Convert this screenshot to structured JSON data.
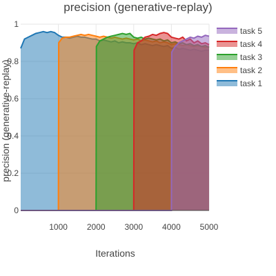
{
  "chart_data": {
    "type": "area",
    "title": "precision (generative-replay)",
    "xlabel": "Iterations",
    "ylabel": "precision (generative-replay)",
    "xlim": [
      0,
      5000
    ],
    "ylim": [
      0,
      1
    ],
    "x_ticks": [
      1000,
      2000,
      3000,
      4000,
      5000
    ],
    "y_ticks": [
      0,
      0.2,
      0.4,
      0.6,
      0.8,
      1
    ],
    "x_tick_labels": [
      "1000",
      "2000",
      "3000",
      "4000",
      "5000"
    ],
    "y_tick_labels": [
      "0",
      "0.2",
      "0.4",
      "0.6",
      "0.8",
      "1"
    ],
    "grid": true,
    "legend_position": "top-right",
    "series": [
      {
        "name": "task 1",
        "color": "#1f77b4",
        "points": [
          [
            0,
            0.87
          ],
          [
            100,
            0.92
          ],
          [
            200,
            0.93
          ],
          [
            300,
            0.94
          ],
          [
            400,
            0.95
          ],
          [
            500,
            0.955
          ],
          [
            600,
            0.96
          ],
          [
            700,
            0.955
          ],
          [
            800,
            0.96
          ],
          [
            900,
            0.955
          ],
          [
            1000,
            0.94
          ],
          [
            1100,
            0.93
          ],
          [
            1200,
            0.93
          ],
          [
            1300,
            0.925
          ],
          [
            1400,
            0.93
          ],
          [
            1500,
            0.935
          ],
          [
            1600,
            0.93
          ],
          [
            1700,
            0.93
          ],
          [
            1800,
            0.925
          ],
          [
            1900,
            0.92
          ],
          [
            2000,
            0.92
          ],
          [
            2100,
            0.91
          ],
          [
            2200,
            0.915
          ],
          [
            2300,
            0.91
          ],
          [
            2400,
            0.905
          ],
          [
            2500,
            0.91
          ],
          [
            2600,
            0.9
          ],
          [
            2700,
            0.905
          ],
          [
            2800,
            0.9
          ],
          [
            2900,
            0.9
          ],
          [
            3000,
            0.895
          ],
          [
            3100,
            0.9
          ],
          [
            3200,
            0.89
          ],
          [
            3300,
            0.895
          ],
          [
            3400,
            0.89
          ],
          [
            3500,
            0.885
          ],
          [
            3600,
            0.89
          ],
          [
            3700,
            0.885
          ],
          [
            3800,
            0.88
          ],
          [
            3900,
            0.885
          ],
          [
            4000,
            0.87
          ],
          [
            4100,
            0.875
          ],
          [
            4200,
            0.865
          ],
          [
            4300,
            0.87
          ],
          [
            4400,
            0.865
          ],
          [
            4500,
            0.86
          ],
          [
            4600,
            0.865
          ],
          [
            4700,
            0.86
          ],
          [
            4800,
            0.855
          ],
          [
            4900,
            0.86
          ],
          [
            5000,
            0.86
          ]
        ]
      },
      {
        "name": "task 2",
        "color": "#ff7f0e",
        "points": [
          [
            1000,
            0
          ],
          [
            1010,
            0.9
          ],
          [
            1100,
            0.925
          ],
          [
            1200,
            0.93
          ],
          [
            1300,
            0.93
          ],
          [
            1400,
            0.935
          ],
          [
            1500,
            0.94
          ],
          [
            1600,
            0.945
          ],
          [
            1700,
            0.94
          ],
          [
            1800,
            0.945
          ],
          [
            1900,
            0.94
          ],
          [
            2000,
            0.935
          ],
          [
            2100,
            0.93
          ],
          [
            2200,
            0.935
          ],
          [
            2300,
            0.93
          ],
          [
            2400,
            0.925
          ],
          [
            2500,
            0.93
          ],
          [
            2600,
            0.925
          ],
          [
            2700,
            0.92
          ],
          [
            2800,
            0.925
          ],
          [
            2900,
            0.92
          ],
          [
            3000,
            0.915
          ],
          [
            3100,
            0.92
          ],
          [
            3200,
            0.91
          ],
          [
            3300,
            0.915
          ],
          [
            3400,
            0.91
          ],
          [
            3500,
            0.905
          ],
          [
            3600,
            0.91
          ],
          [
            3700,
            0.9
          ],
          [
            3800,
            0.905
          ],
          [
            3900,
            0.9
          ],
          [
            4000,
            0.89
          ],
          [
            4100,
            0.895
          ],
          [
            4200,
            0.89
          ],
          [
            4300,
            0.885
          ],
          [
            4400,
            0.89
          ],
          [
            4500,
            0.885
          ],
          [
            4600,
            0.88
          ],
          [
            4700,
            0.885
          ],
          [
            4800,
            0.88
          ],
          [
            4900,
            0.875
          ],
          [
            5000,
            0.88
          ]
        ]
      },
      {
        "name": "task 3",
        "color": "#2ca02c",
        "points": [
          [
            2000,
            0
          ],
          [
            2010,
            0.88
          ],
          [
            2100,
            0.91
          ],
          [
            2200,
            0.92
          ],
          [
            2300,
            0.93
          ],
          [
            2400,
            0.935
          ],
          [
            2500,
            0.94
          ],
          [
            2600,
            0.945
          ],
          [
            2700,
            0.95
          ],
          [
            2800,
            0.945
          ],
          [
            2900,
            0.95
          ],
          [
            3000,
            0.93
          ],
          [
            3100,
            0.925
          ],
          [
            3200,
            0.93
          ],
          [
            3300,
            0.92
          ],
          [
            3400,
            0.925
          ],
          [
            3500,
            0.92
          ],
          [
            3600,
            0.915
          ],
          [
            3700,
            0.92
          ],
          [
            3800,
            0.91
          ],
          [
            3900,
            0.915
          ],
          [
            4000,
            0.9
          ],
          [
            4100,
            0.905
          ],
          [
            4200,
            0.895
          ],
          [
            4300,
            0.9
          ],
          [
            4400,
            0.89
          ],
          [
            4500,
            0.895
          ],
          [
            4600,
            0.885
          ],
          [
            4700,
            0.89
          ],
          [
            4800,
            0.88
          ],
          [
            4900,
            0.885
          ],
          [
            5000,
            0.875
          ]
        ]
      },
      {
        "name": "task 4",
        "color": "#d62728",
        "points": [
          [
            3000,
            0
          ],
          [
            3010,
            0.86
          ],
          [
            3100,
            0.9
          ],
          [
            3200,
            0.91
          ],
          [
            3300,
            0.93
          ],
          [
            3400,
            0.935
          ],
          [
            3500,
            0.945
          ],
          [
            3600,
            0.94
          ],
          [
            3700,
            0.95
          ],
          [
            3800,
            0.955
          ],
          [
            3900,
            0.95
          ],
          [
            4000,
            0.93
          ],
          [
            4100,
            0.925
          ],
          [
            4200,
            0.92
          ],
          [
            4300,
            0.93
          ],
          [
            4400,
            0.91
          ],
          [
            4500,
            0.92
          ],
          [
            4600,
            0.9
          ],
          [
            4700,
            0.91
          ],
          [
            4800,
            0.895
          ],
          [
            4900,
            0.9
          ],
          [
            5000,
            0.89
          ]
        ]
      },
      {
        "name": "task 5",
        "color": "#9467bd",
        "points": [
          [
            0,
            0
          ],
          [
            3990,
            0
          ],
          [
            4000,
            0
          ],
          [
            4010,
            0.85
          ],
          [
            4100,
            0.88
          ],
          [
            4200,
            0.9
          ],
          [
            4300,
            0.91
          ],
          [
            4400,
            0.92
          ],
          [
            4500,
            0.93
          ],
          [
            4600,
            0.925
          ],
          [
            4700,
            0.935
          ],
          [
            4800,
            0.93
          ],
          [
            4900,
            0.94
          ],
          [
            5000,
            0.935
          ]
        ]
      }
    ]
  }
}
